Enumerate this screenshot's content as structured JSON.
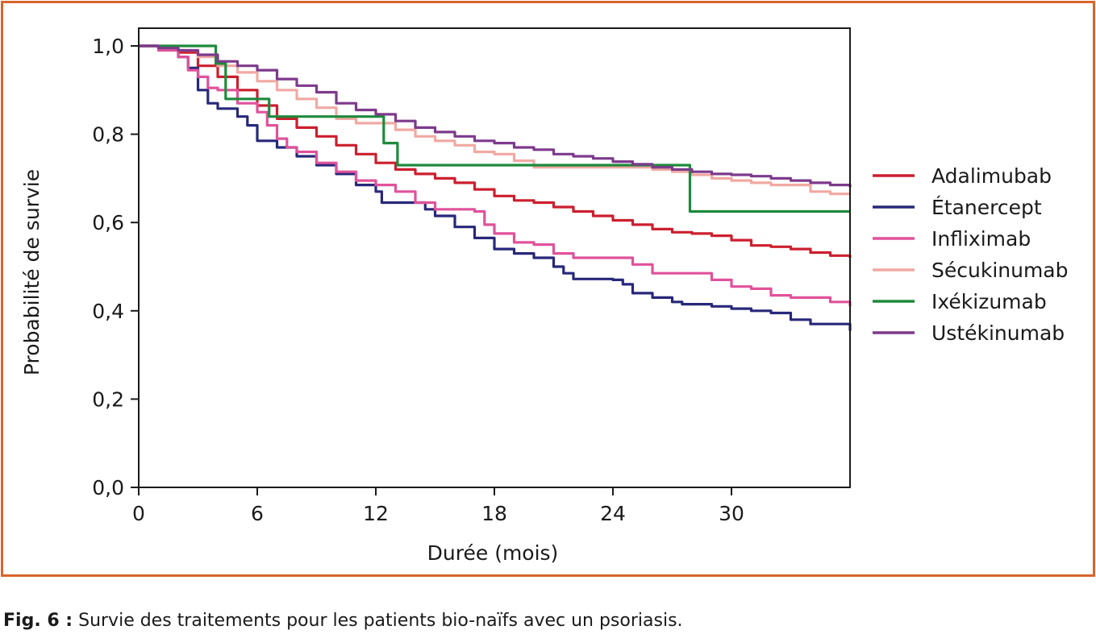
{
  "chart_data": {
    "type": "line",
    "step": true,
    "xlabel": "Durée (mois)",
    "ylabel": "Probabilité de survie",
    "xlim": [
      0,
      36
    ],
    "ylim": [
      0,
      1
    ],
    "xticks": [
      0,
      6,
      12,
      18,
      24,
      30
    ],
    "xtick_labels": [
      "0",
      "6",
      "12",
      "18",
      "24",
      "30"
    ],
    "yticks": [
      0,
      0.2,
      0.4,
      0.6,
      0.8,
      1.0
    ],
    "ytick_labels": [
      "0,0",
      "0,2",
      "0,4",
      "0,6",
      "0,8",
      "1,0"
    ],
    "grid": false,
    "legend_position": "right",
    "series": [
      {
        "name": "Adalimubab",
        "color": "#cc1f2e",
        "x": [
          0,
          1,
          2,
          3,
          4,
          5,
          6,
          7,
          8,
          9,
          10,
          11,
          12,
          13,
          14,
          15,
          16,
          17,
          18,
          19,
          20,
          21,
          22,
          23,
          24,
          25,
          26,
          27,
          28,
          29,
          30,
          31,
          32,
          33,
          34,
          35,
          36
        ],
        "y": [
          1.0,
          0.995,
          0.985,
          0.955,
          0.93,
          0.9,
          0.865,
          0.835,
          0.815,
          0.795,
          0.775,
          0.755,
          0.735,
          0.72,
          0.71,
          0.7,
          0.69,
          0.675,
          0.66,
          0.65,
          0.645,
          0.635,
          0.625,
          0.615,
          0.605,
          0.595,
          0.585,
          0.578,
          0.575,
          0.57,
          0.56,
          0.548,
          0.545,
          0.54,
          0.532,
          0.525,
          0.52
        ]
      },
      {
        "name": "Étanercept",
        "color": "#28287a",
        "x": [
          0,
          1,
          2,
          2.5,
          3,
          3.5,
          4,
          5,
          5.5,
          6,
          7,
          8,
          9,
          10,
          11,
          12,
          12.3,
          14,
          14.5,
          15,
          16,
          17,
          18,
          19,
          20,
          21,
          21.5,
          22,
          24,
          24.5,
          25,
          26,
          27,
          27.5,
          29,
          30,
          31,
          32,
          33,
          34,
          35,
          36
        ],
        "y": [
          1.0,
          0.995,
          0.975,
          0.95,
          0.9,
          0.87,
          0.858,
          0.84,
          0.82,
          0.785,
          0.77,
          0.75,
          0.73,
          0.71,
          0.685,
          0.67,
          0.645,
          0.645,
          0.63,
          0.615,
          0.59,
          0.565,
          0.54,
          0.53,
          0.52,
          0.5,
          0.485,
          0.472,
          0.47,
          0.46,
          0.44,
          0.43,
          0.42,
          0.415,
          0.41,
          0.405,
          0.4,
          0.395,
          0.38,
          0.37,
          0.37,
          0.355
        ]
      },
      {
        "name": "Infliximab",
        "color": "#e0529b",
        "x": [
          0,
          1,
          2,
          2.5,
          3,
          3.5,
          4,
          5,
          6,
          6.5,
          7,
          7.5,
          8,
          9,
          10,
          11,
          12,
          13,
          14,
          15,
          16,
          17,
          17.5,
          18,
          19,
          20,
          21,
          22,
          23,
          25,
          26,
          27,
          28,
          29,
          30,
          31,
          32,
          33,
          34,
          35,
          36
        ],
        "y": [
          1.0,
          0.99,
          0.975,
          0.945,
          0.93,
          0.905,
          0.9,
          0.87,
          0.85,
          0.82,
          0.79,
          0.77,
          0.76,
          0.735,
          0.715,
          0.695,
          0.685,
          0.67,
          0.645,
          0.63,
          0.63,
          0.625,
          0.595,
          0.575,
          0.555,
          0.55,
          0.53,
          0.52,
          0.52,
          0.505,
          0.485,
          0.485,
          0.485,
          0.47,
          0.455,
          0.45,
          0.435,
          0.43,
          0.43,
          0.42,
          0.41
        ]
      },
      {
        "name": "Sécukinumab",
        "color": "#f0a9a2",
        "x": [
          0,
          1,
          2,
          3,
          4,
          5,
          6,
          7,
          8,
          9,
          10,
          11,
          12,
          13,
          14,
          15,
          16,
          17,
          18,
          19,
          20,
          21,
          22,
          23,
          24,
          25,
          26,
          27,
          28,
          29,
          30,
          31,
          32,
          33,
          34,
          35,
          36
        ],
        "y": [
          1.0,
          0.995,
          0.99,
          0.975,
          0.955,
          0.94,
          0.92,
          0.9,
          0.88,
          0.86,
          0.835,
          0.825,
          0.825,
          0.81,
          0.795,
          0.785,
          0.775,
          0.76,
          0.755,
          0.74,
          0.725,
          0.725,
          0.725,
          0.725,
          0.725,
          0.725,
          0.72,
          0.715,
          0.708,
          0.7,
          0.695,
          0.69,
          0.685,
          0.685,
          0.67,
          0.665,
          0.665
        ]
      },
      {
        "name": "Ixékizumab",
        "color": "#1e8a3c",
        "x": [
          0,
          3.9,
          4.4,
          6.6,
          12.4,
          13.1,
          27.9,
          36
        ],
        "y": [
          1.0,
          0.96,
          0.88,
          0.84,
          0.78,
          0.73,
          0.625,
          0.625
        ]
      },
      {
        "name": "Ustékinumab",
        "color": "#7d3a8c",
        "x": [
          0,
          1,
          2,
          3,
          4,
          5,
          6,
          7,
          8,
          9,
          10,
          11,
          12,
          13,
          14,
          15,
          16,
          17,
          18,
          19,
          20,
          21,
          22,
          23,
          24,
          25,
          26,
          27,
          28,
          29,
          30,
          31,
          32,
          33,
          34,
          35,
          36
        ],
        "y": [
          1.0,
          0.995,
          0.99,
          0.98,
          0.965,
          0.955,
          0.945,
          0.925,
          0.91,
          0.895,
          0.87,
          0.855,
          0.845,
          0.83,
          0.815,
          0.805,
          0.795,
          0.785,
          0.78,
          0.77,
          0.765,
          0.755,
          0.75,
          0.745,
          0.738,
          0.732,
          0.725,
          0.72,
          0.715,
          0.71,
          0.708,
          0.705,
          0.7,
          0.695,
          0.69,
          0.685,
          0.68
        ]
      }
    ]
  },
  "caption": {
    "label": "Fig. 6 :",
    "text": " Survie des traitements pour les patients bio-naïfs avec un psoriasis."
  }
}
